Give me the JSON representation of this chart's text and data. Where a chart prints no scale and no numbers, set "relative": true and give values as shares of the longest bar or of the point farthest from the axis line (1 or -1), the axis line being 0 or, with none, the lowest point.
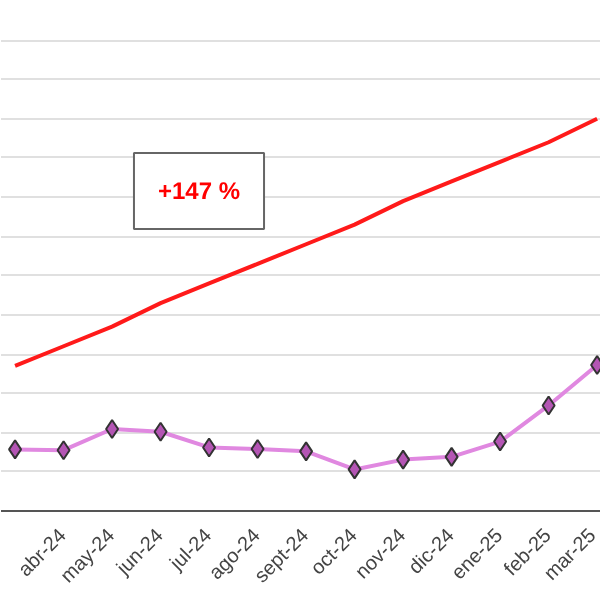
{
  "chart_data": {
    "type": "line",
    "relative": true,
    "categories": [
      null,
      "abr-24",
      "may-24",
      "jun-24",
      "jul-24",
      "ago-24",
      "sept-24",
      "oct-24",
      "nov-24",
      "dic-24",
      "ene-25",
      "feb-25",
      "mar-25"
    ],
    "series": [
      {
        "color": "#e088e0",
        "values": [
          0.157,
          0.155,
          0.209,
          0.202,
          0.162,
          0.158,
          0.152,
          0.106,
          0.131,
          0.138,
          0.177,
          0.269,
          0.372
        ],
        "marker": "diamond"
      },
      {
        "color": "#ff1a1a",
        "values": [
          0.37,
          0.42,
          0.47,
          0.53,
          0.58,
          0.63,
          0.68,
          0.73,
          0.79,
          0.84,
          0.89,
          0.94,
          1.0
        ],
        "marker": "none"
      }
    ],
    "annotations": [
      "+147 %"
    ],
    "grid": "y"
  }
}
